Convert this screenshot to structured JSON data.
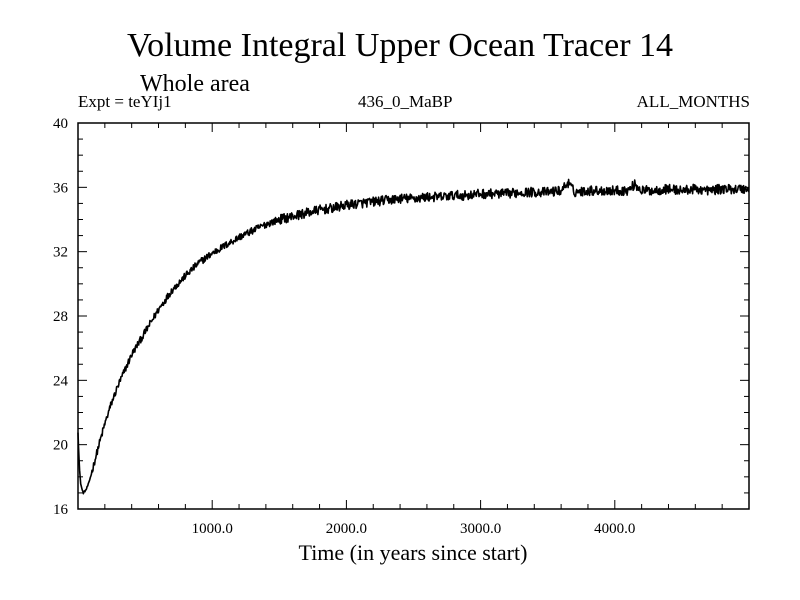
{
  "chart_data": {
    "type": "line",
    "title": "Volume Integral Upper Ocean Tracer 14",
    "subtitle": "Whole area",
    "annotations": {
      "experiment": "Expt = teYIj1",
      "period": "436_0_MaBP",
      "months": "ALL_MONTHS"
    },
    "xlabel": "Time (in years since start)",
    "ylabel": "",
    "xlim": [
      0,
      5000
    ],
    "ylim": [
      16,
      40
    ],
    "x_ticks": [
      1000,
      2000,
      3000,
      4000
    ],
    "x_tick_labels": [
      "1000.0",
      "2000.0",
      "3000.0",
      "4000.0"
    ],
    "y_ticks": [
      16,
      20,
      24,
      28,
      32,
      36,
      40
    ],
    "y_tick_labels": [
      "16",
      "20",
      "24",
      "28",
      "32",
      "36",
      "40"
    ],
    "grid": false,
    "legend": "none",
    "series": [
      {
        "name": "Tracer 14",
        "color": "#000000",
        "x": [
          0,
          10,
          20,
          30,
          40,
          60,
          80,
          100,
          150,
          200,
          250,
          300,
          400,
          500,
          600,
          700,
          800,
          900,
          1000,
          1100,
          1200,
          1300,
          1400,
          1500,
          1600,
          1700,
          1800,
          1900,
          2000,
          2100,
          2200,
          2300,
          2400,
          2500,
          2600,
          2700,
          2800,
          2900,
          3000,
          3100,
          3200,
          3300,
          3400,
          3500,
          3600,
          3650,
          3700,
          3800,
          3900,
          4000,
          4100,
          4150,
          4200,
          4300,
          4400,
          4500,
          4600,
          4700,
          4800,
          4900,
          5000
        ],
        "values": [
          20.8,
          18.6,
          17.6,
          17.2,
          17.0,
          17.2,
          17.6,
          18.2,
          19.8,
          21.3,
          22.6,
          23.7,
          25.6,
          27.0,
          28.4,
          29.6,
          30.5,
          31.3,
          31.9,
          32.4,
          32.9,
          33.3,
          33.7,
          34.0,
          34.2,
          34.4,
          34.6,
          34.7,
          34.9,
          35.0,
          35.1,
          35.2,
          35.3,
          35.3,
          35.4,
          35.4,
          35.5,
          35.5,
          35.6,
          35.6,
          35.6,
          35.7,
          35.7,
          35.7,
          35.8,
          36.3,
          35.7,
          35.8,
          35.8,
          35.8,
          35.8,
          36.2,
          35.8,
          35.8,
          35.9,
          35.8,
          35.9,
          35.8,
          35.9,
          35.9,
          35.9
        ]
      }
    ]
  }
}
